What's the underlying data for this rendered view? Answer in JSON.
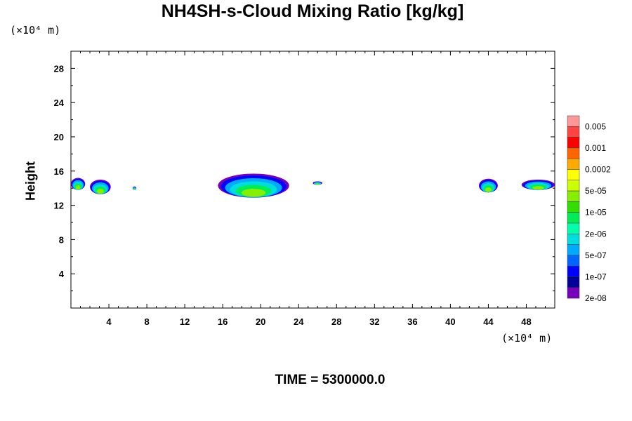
{
  "chart_data": {
    "type": "heatmap",
    "title": "NH4SH-s-Cloud Mixing Ratio [kg/kg]",
    "ylabel": "Height",
    "x_unit_label": "(×10⁴ m)",
    "y_unit_label": "(×10⁴ m)",
    "footer": "TIME = 5300000.0",
    "xlim": [
      0,
      51
    ],
    "ylim": [
      0,
      30
    ],
    "x_ticks": [
      "4",
      "8",
      "12",
      "16",
      "20",
      "24",
      "28",
      "32",
      "36",
      "40",
      "44",
      "48"
    ],
    "y_ticks": [
      "4",
      "8",
      "12",
      "16",
      "20",
      "24",
      "28"
    ],
    "colorbar": {
      "labels": [
        "0.005",
        "0.001",
        "0.0002",
        "5e-05",
        "1e-05",
        "2e-06",
        "5e-07",
        "1e-07",
        "2e-08"
      ],
      "colors": [
        "#ff9999",
        "#ff4444",
        "#ff0000",
        "#ff6600",
        "#ffaa00",
        "#ffff00",
        "#ccff00",
        "#88ee00",
        "#33dd00",
        "#00ee55",
        "#00ffaa",
        "#00dddd",
        "#00aaff",
        "#0066ff",
        "#0000ff",
        "#000099",
        "#7700bb"
      ]
    },
    "cloud_bands": [
      {
        "x": [
          0.0,
          1.5
        ],
        "y": [
          13.8,
          15.2
        ]
      },
      {
        "x": [
          2.0,
          4.2
        ],
        "y": [
          13.3,
          15.0
        ]
      },
      {
        "x": [
          6.5,
          6.9
        ],
        "y": [
          13.8,
          14.2
        ]
      },
      {
        "x": [
          15.5,
          23.0
        ],
        "y": [
          12.9,
          15.7
        ]
      },
      {
        "x": [
          25.5,
          26.5
        ],
        "y": [
          14.4,
          14.8
        ]
      },
      {
        "x": [
          43.0,
          45.0
        ],
        "y": [
          13.5,
          15.1
        ]
      },
      {
        "x": [
          47.5,
          51.0
        ],
        "y": [
          13.8,
          15.0
        ]
      }
    ]
  }
}
